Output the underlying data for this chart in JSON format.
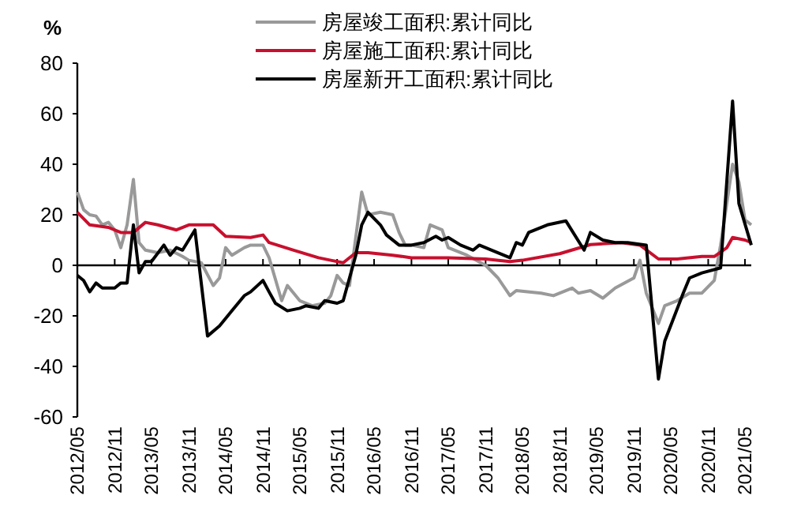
{
  "chart_data": {
    "type": "line",
    "ylabel": "%",
    "legend": "top",
    "marker": "none",
    "line_style": "solid",
    "xlim": [
      "2012-05",
      "2021-06"
    ],
    "xticks": [
      {
        "value": "2012-05",
        "label": "2012/05"
      },
      {
        "value": "2012-11",
        "label": "2012/11"
      },
      {
        "value": "2013-05",
        "label": "2013/05"
      },
      {
        "value": "2013-11",
        "label": "2013/11"
      },
      {
        "value": "2014-05",
        "label": "2014/05"
      },
      {
        "value": "2014-11",
        "label": "2014/11"
      },
      {
        "value": "2015-05",
        "label": "2015/05"
      },
      {
        "value": "2015-11",
        "label": "2015/11"
      },
      {
        "value": "2016-05",
        "label": "2016/05"
      },
      {
        "value": "2016-11",
        "label": "2016/11"
      },
      {
        "value": "2017-05",
        "label": "2017/05"
      },
      {
        "value": "2017-11",
        "label": "2017/11"
      },
      {
        "value": "2018-05",
        "label": "2018/05"
      },
      {
        "value": "2018-11",
        "label": "2018/11"
      },
      {
        "value": "2019-05",
        "label": "2019/05"
      },
      {
        "value": "2019-11",
        "label": "2019/11"
      },
      {
        "value": "2020-05",
        "label": "2020/05"
      },
      {
        "value": "2020-11",
        "label": "2020/11"
      },
      {
        "value": "2021-05",
        "label": "2021/05"
      }
    ],
    "ylim": [
      -60,
      80
    ],
    "yticks": [
      -60,
      -40,
      -20,
      0,
      20,
      40,
      60,
      80
    ],
    "series": [
      {
        "name": "房屋竣工面积:累计同比",
        "color": "#999999",
        "x": [
          "2012-05",
          "2012-06",
          "2012-07",
          "2012-08",
          "2012-09",
          "2012-10",
          "2012-11",
          "2012-12",
          "2013-01",
          "2013-02",
          "2013-03",
          "2013-04",
          "2013-06",
          "2013-08",
          "2013-10",
          "2013-11",
          "2014-01",
          "2014-03",
          "2014-04",
          "2014-05",
          "2014-06",
          "2014-08",
          "2014-09",
          "2014-11",
          "2014-12",
          "2015-02",
          "2015-03",
          "2015-05",
          "2015-07",
          "2015-09",
          "2015-10",
          "2015-11",
          "2015-12",
          "2016-01",
          "2016-03",
          "2016-04",
          "2016-06",
          "2016-08",
          "2016-09",
          "2016-10",
          "2016-11",
          "2017-01",
          "2017-02",
          "2017-04",
          "2017-05",
          "2017-08",
          "2017-11",
          "2018-01",
          "2018-03",
          "2018-04",
          "2018-08",
          "2018-10",
          "2019-01",
          "2019-02",
          "2019-04",
          "2019-06",
          "2019-08",
          "2019-11",
          "2019-12",
          "2020-01",
          "2020-03",
          "2020-04",
          "2020-06",
          "2020-08",
          "2020-10",
          "2020-12",
          "2021-01",
          "2021-03",
          "2021-04",
          "2021-05",
          "2021-06"
        ],
        "values": [
          29,
          22,
          20,
          19.5,
          16,
          17,
          14,
          7,
          16,
          34,
          9,
          6,
          5,
          6,
          3.5,
          2,
          1,
          -8,
          -5,
          7,
          4,
          7,
          8,
          8,
          3,
          -14,
          -8,
          -14,
          -16,
          -15,
          -12,
          -4,
          -7,
          -8,
          29,
          20,
          21,
          20,
          13,
          8,
          8,
          7,
          16,
          14,
          7,
          4,
          0,
          -5,
          -12,
          -10,
          -11,
          -12,
          -9,
          -11,
          -10,
          -13,
          -9,
          -5,
          2,
          -11,
          -23,
          -16,
          -14,
          -11,
          -11,
          -6,
          8,
          40,
          33,
          18,
          16
        ]
      },
      {
        "name": "房屋施工面积:累计同比",
        "color": "#c8102e",
        "x": [
          "2012-05",
          "2012-07",
          "2012-10",
          "2012-12",
          "2013-02",
          "2013-04",
          "2013-06",
          "2013-09",
          "2013-11",
          "2014-03",
          "2014-05",
          "2014-09",
          "2014-11",
          "2014-12",
          "2015-04",
          "2015-08",
          "2015-10",
          "2015-12",
          "2016-02",
          "2016-04",
          "2016-08",
          "2016-11",
          "2017-05",
          "2017-11",
          "2018-03",
          "2018-05",
          "2018-11",
          "2019-04",
          "2019-09",
          "2019-12",
          "2020-03",
          "2020-06",
          "2020-10",
          "2020-12",
          "2021-02",
          "2021-03",
          "2021-05",
          "2021-06"
        ],
        "values": [
          21,
          16,
          15,
          13,
          13,
          17,
          16,
          14,
          16,
          16,
          11.5,
          11,
          12,
          9,
          6,
          3,
          2,
          1,
          5,
          5,
          4,
          3,
          3,
          2.5,
          1.5,
          2,
          4.6,
          8.2,
          9,
          8,
          2.5,
          2.5,
          3.5,
          3.5,
          7,
          11,
          10,
          9
        ]
      },
      {
        "name": "房屋新开工面积:累计同比",
        "color": "#000000",
        "x": [
          "2012-05",
          "2012-06",
          "2012-07",
          "2012-08",
          "2012-09",
          "2012-11",
          "2012-12",
          "2013-01",
          "2013-02",
          "2013-03",
          "2013-04",
          "2013-05",
          "2013-07",
          "2013-08",
          "2013-09",
          "2013-10",
          "2013-12",
          "2014-02",
          "2014-04",
          "2014-06",
          "2014-08",
          "2014-09",
          "2014-11",
          "2014-12",
          "2015-01",
          "2015-03",
          "2015-05",
          "2015-06",
          "2015-08",
          "2015-09",
          "2015-11",
          "2015-12",
          "2016-02",
          "2016-03",
          "2016-04",
          "2016-06",
          "2016-07",
          "2016-09",
          "2016-11",
          "2017-01",
          "2017-03",
          "2017-04",
          "2017-05",
          "2017-07",
          "2017-09",
          "2017-10",
          "2017-12",
          "2018-03",
          "2018-04",
          "2018-05",
          "2018-06",
          "2018-09",
          "2018-12",
          "2019-03",
          "2019-04",
          "2019-06",
          "2019-08",
          "2019-10",
          "2020-01",
          "2020-03",
          "2020-04",
          "2020-07",
          "2020-08",
          "2020-10",
          "2021-01",
          "2021-03",
          "2021-04",
          "2021-06"
        ],
        "values": [
          -4,
          -6,
          -10.5,
          -7,
          -9,
          -9,
          -7,
          -7,
          16,
          -3,
          1.5,
          1.5,
          8,
          4,
          7,
          6,
          14,
          -28,
          -24,
          -18,
          -12,
          -10.5,
          -6,
          -10.5,
          -15,
          -18,
          -17,
          -16,
          -17,
          -14,
          -15,
          -14,
          4,
          16,
          21,
          16,
          12,
          8,
          8,
          9,
          11.5,
          10,
          11,
          8,
          6,
          8,
          6,
          3,
          9,
          8,
          13,
          16,
          17.6,
          6,
          13,
          10,
          9,
          9,
          8,
          -45,
          -30,
          -11,
          -5,
          -3,
          -1,
          65,
          24.5,
          8
        ]
      }
    ]
  }
}
